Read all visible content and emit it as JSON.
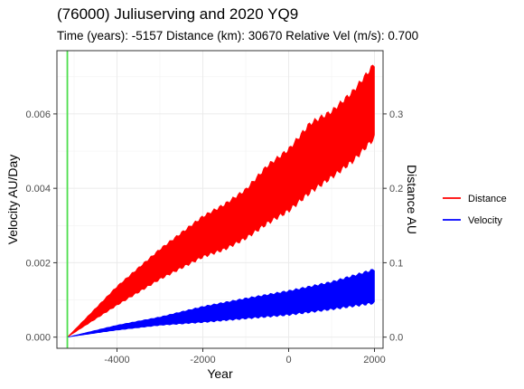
{
  "chart_data": {
    "type": "area",
    "title": "(76000) Juliuserving and 2020 YQ9",
    "subtitle": "Time (years): -5157 Distance (km): 30670 Relative Vel (m/s): 0.700",
    "xlabel": "Year",
    "ylabel": "Velocity AU/Day",
    "y2label": "Distance AU",
    "xlim": [
      -5400,
      2200
    ],
    "ylim": [
      -0.0003,
      0.0077
    ],
    "y2lim": [
      -0.015,
      0.385
    ],
    "x_ticks": [
      -4000,
      -2000,
      0,
      2000
    ],
    "x_tick_labels": [
      "-4000",
      "-2000",
      "0",
      "2000"
    ],
    "y_ticks": [
      0,
      0.002,
      0.004,
      0.006
    ],
    "y_tick_labels": [
      "0.000",
      "0.002",
      "0.004",
      "0.006"
    ],
    "y2_ticks": [
      0,
      0.1,
      0.2,
      0.3
    ],
    "y2_tick_labels": [
      "0.0",
      "0.1",
      "0.2",
      "0.3"
    ],
    "grid": true,
    "vline_x": -5157,
    "legend_position": "right",
    "series": [
      {
        "name": "Distance",
        "axis": "right",
        "color": "#ff0000",
        "x": [
          -5157,
          -4000,
          -3000,
          -2000,
          -1500,
          -1000,
          -500,
          0,
          500,
          1000,
          1500,
          2000
        ],
        "upper": [
          0,
          0.068,
          0.118,
          0.162,
          0.178,
          0.198,
          0.23,
          0.252,
          0.287,
          0.303,
          0.33,
          0.367
        ],
        "lower": [
          0,
          0.043,
          0.078,
          0.108,
          0.118,
          0.133,
          0.153,
          0.17,
          0.195,
          0.215,
          0.237,
          0.268
        ]
      },
      {
        "name": "Velocity",
        "axis": "left",
        "color": "#0000ff",
        "x": [
          -5157,
          -4000,
          -3000,
          -2000,
          -1000,
          0,
          1000,
          2000
        ],
        "upper": [
          0,
          0.00032,
          0.00054,
          0.00082,
          0.00104,
          0.00124,
          0.00148,
          0.00182
        ],
        "lower": [
          0,
          0.00019,
          0.00032,
          0.0004,
          0.0005,
          0.0006,
          0.00075,
          0.00092
        ]
      }
    ],
    "vline_color": "#4ddf4d"
  }
}
